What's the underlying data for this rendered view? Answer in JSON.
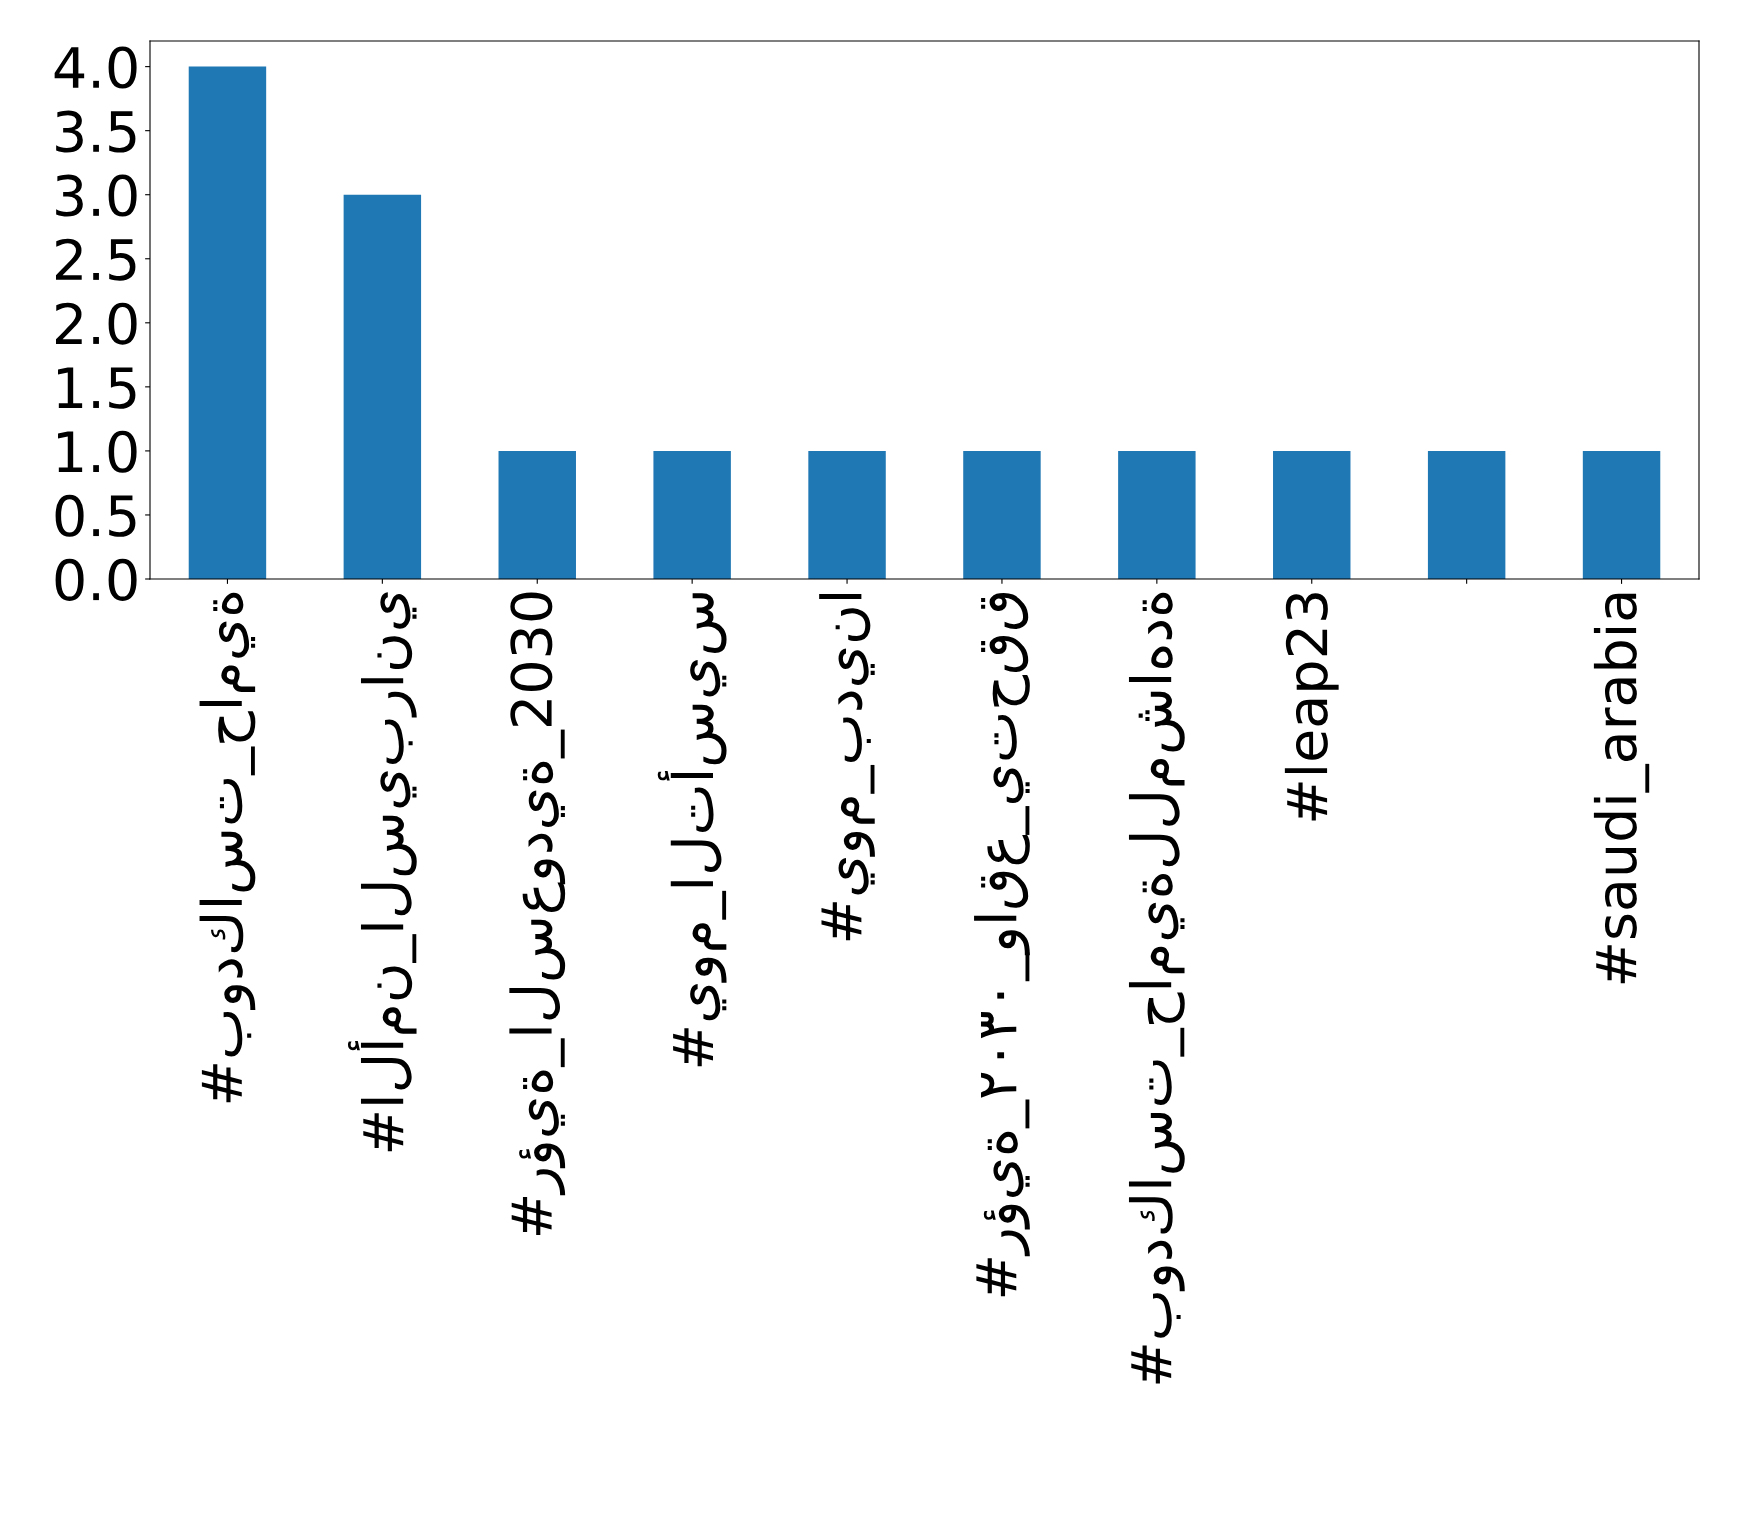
{
  "chart_data": {
    "type": "bar",
    "categories": [
      "#بودكاست_حامية",
      "#الأمن_السيبراني",
      "#رؤية_السعودية_2030",
      "#يوم_التأسيس",
      "#يوم_بدينا",
      "#رؤية_٢٠٣٠_واقع_يتحقق",
      "#بودكاست_حاميةللمشاهدة",
      "#leap23",
      null,
      "#saudi_arabia"
    ],
    "values": [
      4,
      3,
      1,
      1,
      1,
      1,
      1,
      1,
      1,
      1
    ],
    "color": "#1f77b4",
    "ylim": [
      0,
      4.2
    ],
    "yticks": [
      {
        "value": 0,
        "label": "0.0"
      },
      0.5,
      {
        "value": 1,
        "label": "1.0"
      },
      1.5,
      {
        "value": 2,
        "label": "2.0"
      },
      2.5,
      {
        "value": 3,
        "label": "3.0"
      },
      3.5,
      {
        "value": 4,
        "label": "4.0"
      }
    ],
    "grid": false,
    "legend": false
  }
}
